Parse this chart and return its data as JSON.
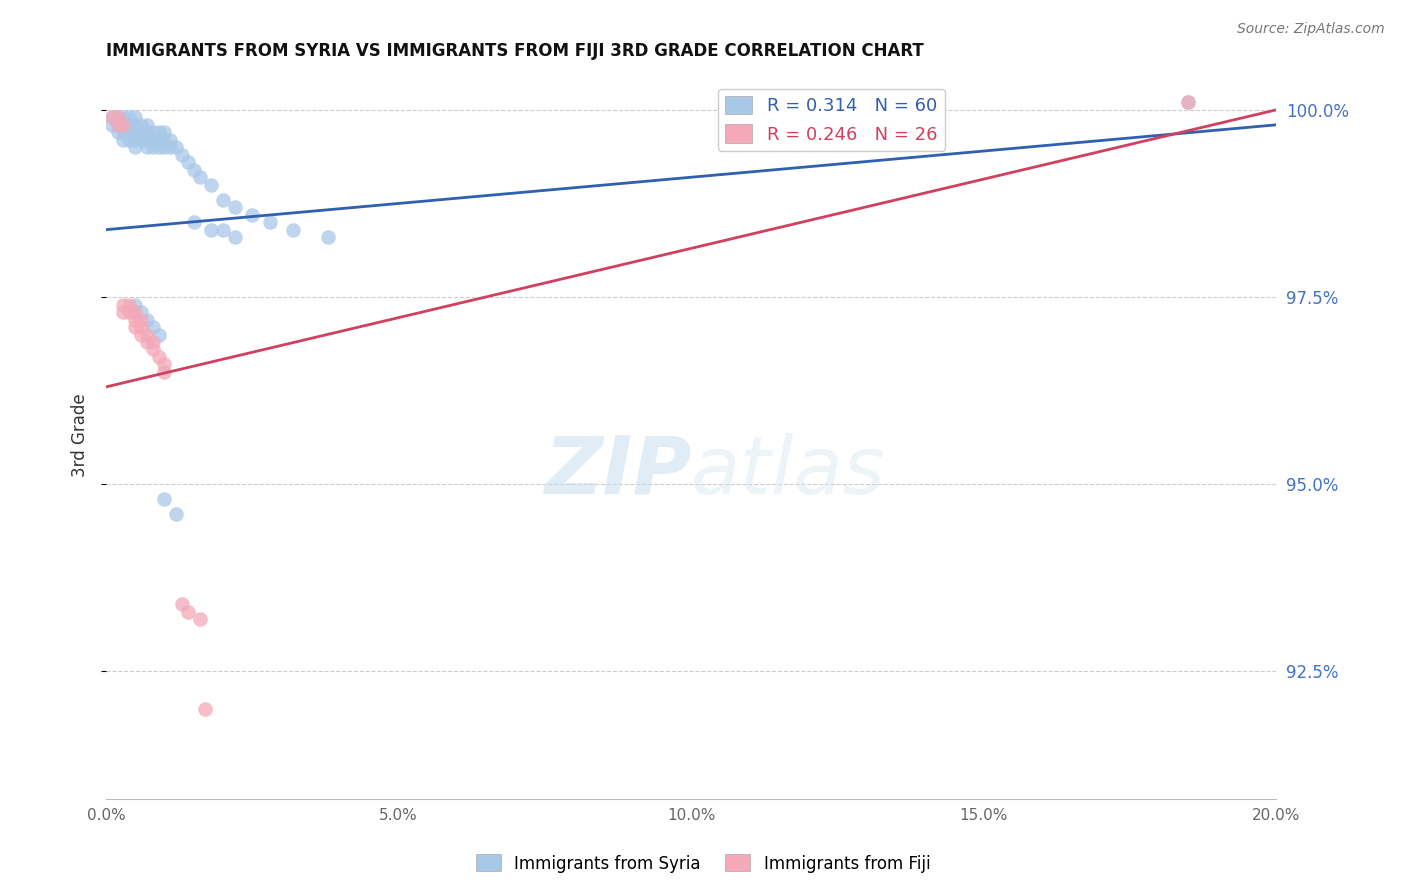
{
  "title": "IMMIGRANTS FROM SYRIA VS IMMIGRANTS FROM FIJI 3RD GRADE CORRELATION CHART",
  "source": "Source: ZipAtlas.com",
  "ylabel": "3rd Grade",
  "xlim": [
    0.0,
    0.2
  ],
  "ylim": [
    0.908,
    1.005
  ],
  "yticks": [
    0.925,
    0.95,
    0.975,
    1.0
  ],
  "ytick_labels": [
    "92.5%",
    "95.0%",
    "97.5%",
    "100.0%"
  ],
  "xticks": [
    0.0,
    0.05,
    0.1,
    0.15,
    0.2
  ],
  "xtick_labels": [
    "0.0%",
    "5.0%",
    "10.0%",
    "15.0%",
    "20.0%"
  ],
  "syria_color": "#a8c8e8",
  "fiji_color": "#f4a8b8",
  "syria_line_color": "#3060b0",
  "fiji_line_color": "#d04060",
  "watermark_color": "#ddeeff",
  "syria_line_x0": 0.0,
  "syria_line_y0": 0.984,
  "syria_line_x1": 0.2,
  "syria_line_y1": 0.998,
  "fiji_line_x0": 0.0,
  "fiji_line_y0": 0.963,
  "fiji_line_x1": 0.2,
  "fiji_line_y1": 1.0,
  "syria_x": [
    0.001,
    0.001,
    0.002,
    0.002,
    0.002,
    0.003,
    0.003,
    0.003,
    0.003,
    0.004,
    0.004,
    0.004,
    0.004,
    0.005,
    0.005,
    0.005,
    0.005,
    0.005,
    0.006,
    0.006,
    0.006,
    0.007,
    0.007,
    0.007,
    0.007,
    0.008,
    0.008,
    0.008,
    0.009,
    0.009,
    0.009,
    0.01,
    0.01,
    0.01,
    0.011,
    0.011,
    0.012,
    0.013,
    0.014,
    0.015,
    0.016,
    0.018,
    0.02,
    0.022,
    0.025,
    0.028,
    0.032,
    0.038,
    0.02,
    0.022,
    0.015,
    0.018,
    0.01,
    0.012,
    0.009,
    0.008,
    0.007,
    0.006,
    0.005,
    0.185
  ],
  "syria_y": [
    0.998,
    0.999,
    0.999,
    0.998,
    0.997,
    0.999,
    0.998,
    0.997,
    0.996,
    0.999,
    0.998,
    0.997,
    0.996,
    0.999,
    0.998,
    0.997,
    0.996,
    0.995,
    0.998,
    0.997,
    0.996,
    0.998,
    0.997,
    0.996,
    0.995,
    0.997,
    0.996,
    0.995,
    0.997,
    0.996,
    0.995,
    0.997,
    0.996,
    0.995,
    0.996,
    0.995,
    0.995,
    0.994,
    0.993,
    0.992,
    0.991,
    0.99,
    0.988,
    0.987,
    0.986,
    0.985,
    0.984,
    0.983,
    0.984,
    0.983,
    0.985,
    0.984,
    0.948,
    0.946,
    0.97,
    0.971,
    0.972,
    0.973,
    0.974,
    1.001
  ],
  "fiji_x": [
    0.001,
    0.002,
    0.002,
    0.003,
    0.003,
    0.003,
    0.004,
    0.004,
    0.005,
    0.005,
    0.005,
    0.006,
    0.006,
    0.006,
    0.007,
    0.007,
    0.008,
    0.008,
    0.009,
    0.01,
    0.01,
    0.013,
    0.014,
    0.016,
    0.017,
    0.185
  ],
  "fiji_y": [
    0.999,
    0.999,
    0.998,
    0.998,
    0.974,
    0.973,
    0.974,
    0.973,
    0.973,
    0.972,
    0.971,
    0.972,
    0.971,
    0.97,
    0.97,
    0.969,
    0.969,
    0.968,
    0.967,
    0.966,
    0.965,
    0.934,
    0.933,
    0.932,
    0.92,
    1.001
  ]
}
